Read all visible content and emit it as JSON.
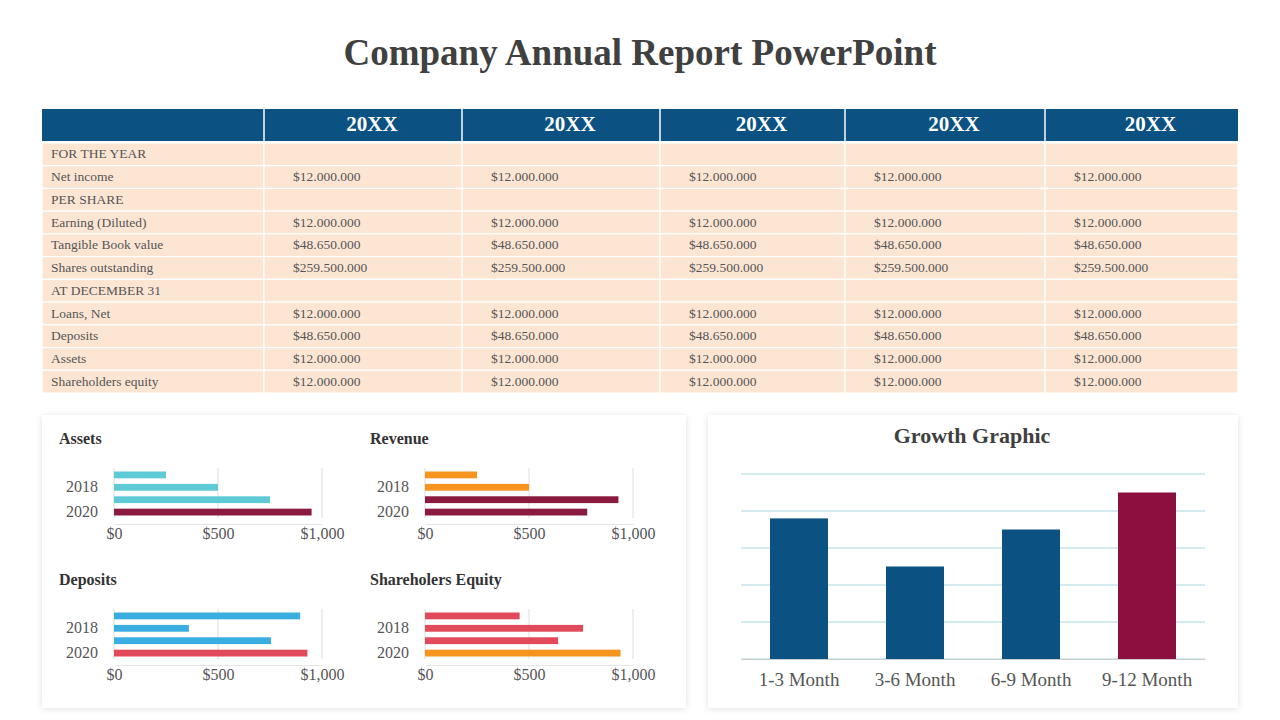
{
  "header": {
    "title": "Company Annual Report PowerPoint"
  },
  "table": {
    "columns": [
      "20XX",
      "20XX",
      "20XX",
      "20XX",
      "20XX"
    ],
    "rows": [
      [
        "FOR THE YEAR"
      ],
      [
        "Net income",
        "$12.000.000",
        "$12.000.000",
        "$12.000.000",
        "$12.000.000",
        "$12.000.000"
      ],
      [
        "PER SHARE"
      ],
      [
        "Earning (Diluted)",
        "$12.000.000",
        "$12.000.000",
        "$12.000.000",
        "$12.000.000",
        "$12.000.000"
      ],
      [
        "Tangible Book value",
        "$48.650.000",
        "$48.650.000",
        "$48.650.000",
        "$48.650.000",
        "$48.650.000"
      ],
      [
        "Shares outstanding",
        "$259.500.000",
        "$259.500.000",
        "$259.500.000",
        "$259.500.000",
        "$259.500.000"
      ],
      [
        "AT DECEMBER 31"
      ],
      [
        "Loans, Net",
        "$12.000.000",
        "$12.000.000",
        "$12.000.000",
        "$12.000.000",
        "$12.000.000"
      ],
      [
        "Deposits",
        "$48.650.000",
        "$48.650.000",
        "$48.650.000",
        "$48.650.000",
        "$48.650.000"
      ],
      [
        "Assets",
        "$12.000.000",
        "$12.000.000",
        "$12.000.000",
        "$12.000.000",
        "$12.000.000"
      ],
      [
        "Shareholders equity",
        "$12.000.000",
        "$12.000.000",
        "$12.000.000",
        "$12.000.000",
        "$12.000.000"
      ]
    ]
  },
  "chart_data": [
    {
      "type": "bar",
      "title": "Assets",
      "orientation": "horizontal",
      "categories": [
        null,
        "2018",
        null,
        "2020"
      ],
      "values": [
        250,
        500,
        750,
        950
      ],
      "colors": [
        "#5ecad6",
        "#5ecad6",
        "#5ecad6",
        "#8b1a3f"
      ],
      "xlim": [
        0,
        1000
      ],
      "xticks": [
        {
          "value": 0,
          "label": "$0"
        },
        {
          "value": 500,
          "label": "$500"
        },
        {
          "value": 1000,
          "label": "$1,000"
        }
      ],
      "grid": true
    },
    {
      "type": "bar",
      "title": "Revenue",
      "orientation": "horizontal",
      "categories": [
        null,
        "2018",
        null,
        "2020"
      ],
      "values": [
        250,
        500,
        930,
        780
      ],
      "colors": [
        "#f7941d",
        "#f7941d",
        "#8b1a3f",
        "#8b1a3f"
      ],
      "xlim": [
        0,
        1000
      ],
      "xticks": [
        {
          "value": 0,
          "label": "$0"
        },
        {
          "value": 500,
          "label": "$500"
        },
        {
          "value": 1000,
          "label": "$1,000"
        }
      ],
      "grid": true
    },
    {
      "type": "bar",
      "title": "Deposits",
      "orientation": "horizontal",
      "categories": [
        null,
        "2018",
        null,
        "2020"
      ],
      "values": [
        895,
        360,
        755,
        930
      ],
      "colors": [
        "#3aaee0",
        "#3aaee0",
        "#3aaee0",
        "#e04a5a"
      ],
      "xlim": [
        0,
        1000
      ],
      "xticks": [
        {
          "value": 0,
          "label": "$0"
        },
        {
          "value": 500,
          "label": "$500"
        },
        {
          "value": 1000,
          "label": "$1,000"
        }
      ],
      "grid": true
    },
    {
      "type": "bar",
      "title": "Shareholers Equity",
      "orientation": "horizontal",
      "categories": [
        null,
        "2018",
        null,
        "2020"
      ],
      "values": [
        455,
        760,
        640,
        940
      ],
      "colors": [
        "#e04a5a",
        "#e04a5a",
        "#e04a5a",
        "#f7941d"
      ],
      "xlim": [
        0,
        1000
      ],
      "xticks": [
        {
          "value": 0,
          "label": "$0"
        },
        {
          "value": 500,
          "label": "$500"
        },
        {
          "value": 1000,
          "label": "$1,000"
        }
      ],
      "grid": true
    },
    {
      "type": "bar",
      "title": "Growth Graphic",
      "categories": [
        "1-3 Month",
        "3-6 Month",
        "6-9 Month",
        "9-12 Month"
      ],
      "values": [
        3.8,
        2.5,
        3.5,
        4.5
      ],
      "colors": [
        "#0b5283",
        "#0b5283",
        "#0b5283",
        "#8b0f3f"
      ],
      "ylim": [
        0,
        5
      ],
      "yticks": [
        0,
        1,
        2,
        3,
        4,
        5
      ],
      "grid": true,
      "tick_labels": "x"
    }
  ]
}
